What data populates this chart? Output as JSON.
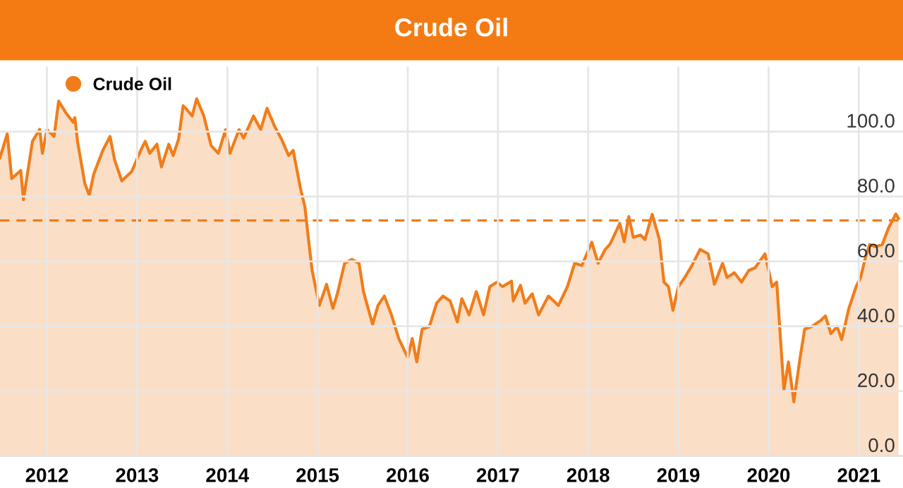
{
  "chart_data": {
    "type": "area",
    "title": "Crude Oil",
    "legend": "top left",
    "grid": true,
    "series": [
      {
        "name": "Crude Oil",
        "color": "#f07d1a",
        "x": [
          2011.48,
          2011.56,
          2011.61,
          2011.71,
          2011.74,
          2011.84,
          2011.92,
          2011.95,
          2012.0,
          2012.08,
          2012.13,
          2012.21,
          2012.29,
          2012.31,
          2012.34,
          2012.42,
          2012.47,
          2012.52,
          2012.62,
          2012.7,
          2012.75,
          2012.83,
          2012.94,
          2013.04,
          2013.09,
          2013.14,
          2013.22,
          2013.27,
          2013.35,
          2013.4,
          2013.46,
          2013.51,
          2013.56,
          2013.61,
          2013.66,
          2013.74,
          2013.82,
          2013.9,
          2013.98,
          2014.03,
          2014.13,
          2014.18,
          2014.29,
          2014.37,
          2014.44,
          2014.52,
          2014.6,
          2014.68,
          2014.73,
          2014.81,
          2014.86,
          2014.9,
          2014.94,
          2015.02,
          2015.1,
          2015.17,
          2015.22,
          2015.3,
          2015.38,
          2015.46,
          2015.51,
          2015.61,
          2015.67,
          2015.74,
          2015.82,
          2015.9,
          2016.0,
          2016.05,
          2016.1,
          2016.16,
          2016.24,
          2016.32,
          2016.39,
          2016.47,
          2016.55,
          2016.6,
          2016.68,
          2016.76,
          2016.84,
          2016.91,
          2016.99,
          2017.05,
          2017.15,
          2017.17,
          2017.25,
          2017.3,
          2017.38,
          2017.45,
          2017.56,
          2017.67,
          2017.77,
          2017.85,
          2017.93,
          2018.04,
          2018.11,
          2018.19,
          2018.24,
          2018.29,
          2018.35,
          2018.4,
          2018.45,
          2018.5,
          2018.58,
          2018.63,
          2018.71,
          2018.79,
          2018.84,
          2018.89,
          2018.94,
          2019.0,
          2019.07,
          2019.15,
          2019.24,
          2019.33,
          2019.4,
          2019.49,
          2019.54,
          2019.62,
          2019.7,
          2019.78,
          2019.85,
          2019.96,
          2020.04,
          2020.09,
          2020.17,
          2020.22,
          2020.28,
          2020.35,
          2020.4,
          2020.48,
          2020.58,
          2020.63,
          2020.69,
          2020.76,
          2020.81,
          2020.89,
          2020.97,
          2021.02,
          2021.07,
          2021.12,
          2021.18,
          2021.26,
          2021.33,
          2021.41,
          2021.44
        ],
        "values": [
          92,
          99.3,
          85.5,
          88,
          79,
          97,
          100.7,
          93.3,
          100.6,
          98.5,
          109.4,
          105.8,
          102.9,
          104.3,
          96.9,
          84,
          80.4,
          87,
          94.2,
          98.5,
          91.3,
          84.8,
          87.7,
          94.2,
          97,
          93.3,
          96.1,
          89.1,
          96.1,
          92.6,
          97.7,
          108,
          106.5,
          104.8,
          110.1,
          104.8,
          95.7,
          93.3,
          100.6,
          93.3,
          100.6,
          98,
          104.8,
          100.6,
          107.2,
          101.9,
          97.7,
          92.6,
          94.2,
          82.6,
          76.8,
          66.7,
          57.2,
          46.4,
          52.9,
          45.5,
          50,
          59.4,
          60.6,
          59.4,
          50.6,
          40.6,
          46.4,
          49.3,
          43.5,
          36.2,
          30.4,
          36.2,
          29,
          39.1,
          39.9,
          47.1,
          49.3,
          47.8,
          41.3,
          48.5,
          43.5,
          50.7,
          43.5,
          52.2,
          53.6,
          52.2,
          53.9,
          47.8,
          52.6,
          47.1,
          50,
          43.5,
          49.3,
          46.4,
          52.2,
          59.4,
          58.7,
          65.9,
          59.4,
          63.7,
          65.2,
          68.1,
          71.7,
          66,
          73.8,
          67.4,
          68.1,
          66.7,
          74.5,
          66.7,
          53.6,
          52.2,
          44.9,
          52.2,
          55,
          58.7,
          63.7,
          62.3,
          52.9,
          59.4,
          55,
          56.5,
          53.6,
          57.2,
          58,
          62.3,
          52.2,
          53.6,
          20.3,
          29,
          16.7,
          30.4,
          39.1,
          39.9,
          41.8,
          43.2,
          37.7,
          39.9,
          35.9,
          45.5,
          52.2,
          55,
          60.8,
          65.2,
          64.5,
          65.2,
          70.3,
          74.6,
          73.2
        ]
      }
    ],
    "xlim": [
      2011.48,
      2021.49
    ],
    "xticks": [
      2012,
      2013,
      2014,
      2015,
      2016,
      2017,
      2018,
      2019,
      2020,
      2021
    ],
    "ylim": [
      0,
      120
    ],
    "yticks": [
      {
        "value": 0,
        "label": "0.0"
      },
      {
        "value": 20,
        "label": "20.0"
      },
      {
        "value": 40,
        "label": "40.0"
      },
      {
        "value": 60,
        "label": "60.0"
      },
      {
        "value": 80,
        "label": "80.0"
      },
      {
        "value": 100,
        "label": "100.0"
      }
    ],
    "ref_lines": [
      {
        "axis": "y",
        "value": 72.6,
        "label": null,
        "color": "#f07d1a",
        "line_style": "dashed"
      }
    ]
  }
}
